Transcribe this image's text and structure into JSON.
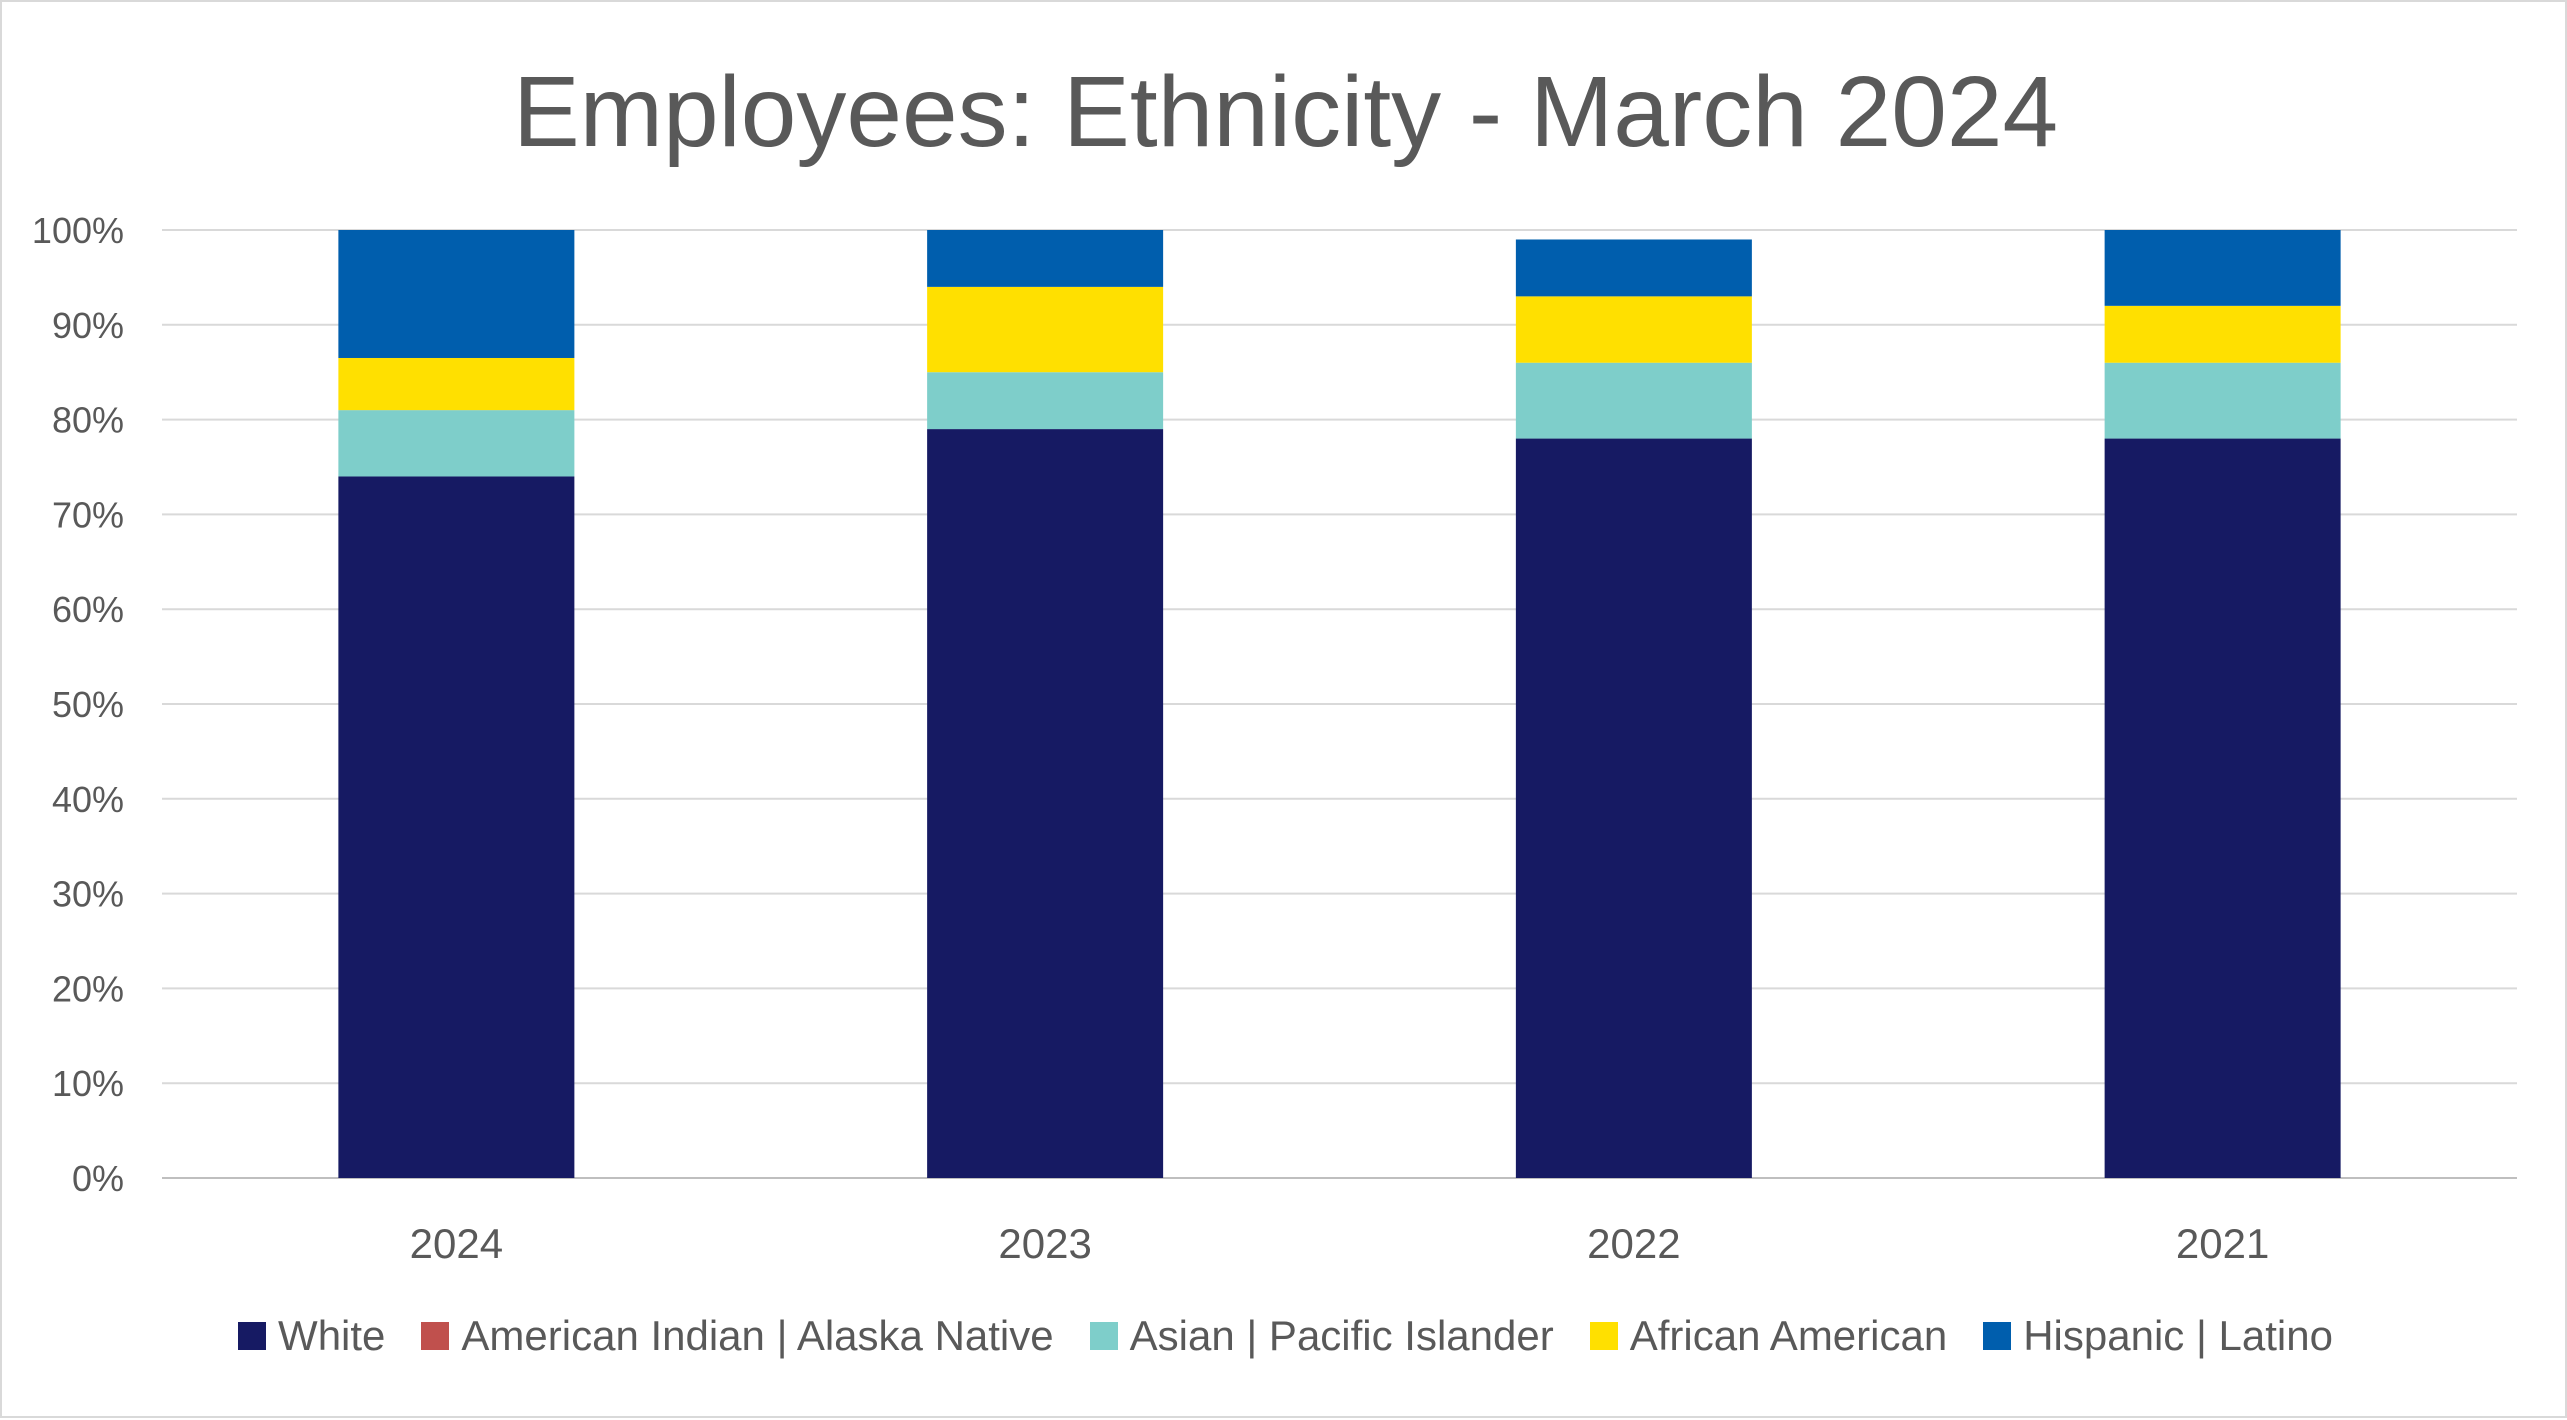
{
  "chart_data": {
    "type": "bar",
    "stacked": true,
    "title": "Employees: Ethnicity - March 2024",
    "xlabel": "",
    "ylabel": "",
    "categories": [
      "2024",
      "2023",
      "2022",
      "2021"
    ],
    "ylim": [
      0,
      100
    ],
    "yticks": [
      "0%",
      "10%",
      "20%",
      "30%",
      "40%",
      "50%",
      "60%",
      "70%",
      "80%",
      "90%",
      "100%"
    ],
    "grid": true,
    "legend_position": "bottom",
    "series": [
      {
        "name": "White",
        "color": "#161A63",
        "values": [
          74,
          79,
          78,
          78
        ]
      },
      {
        "name": "American Indian | Alaska Native",
        "color": "#C0504D",
        "values": [
          0,
          0,
          0,
          0
        ]
      },
      {
        "name": "Asian | Pacific Islander",
        "color": "#7ECECA",
        "values": [
          7,
          6,
          8,
          8
        ]
      },
      {
        "name": "African American",
        "color": "#FFE000",
        "values": [
          5.5,
          9,
          7,
          6
        ]
      },
      {
        "name": "Hispanic | Latino",
        "color": "#005EAD",
        "values": [
          13.5,
          6,
          6,
          8
        ]
      }
    ]
  }
}
